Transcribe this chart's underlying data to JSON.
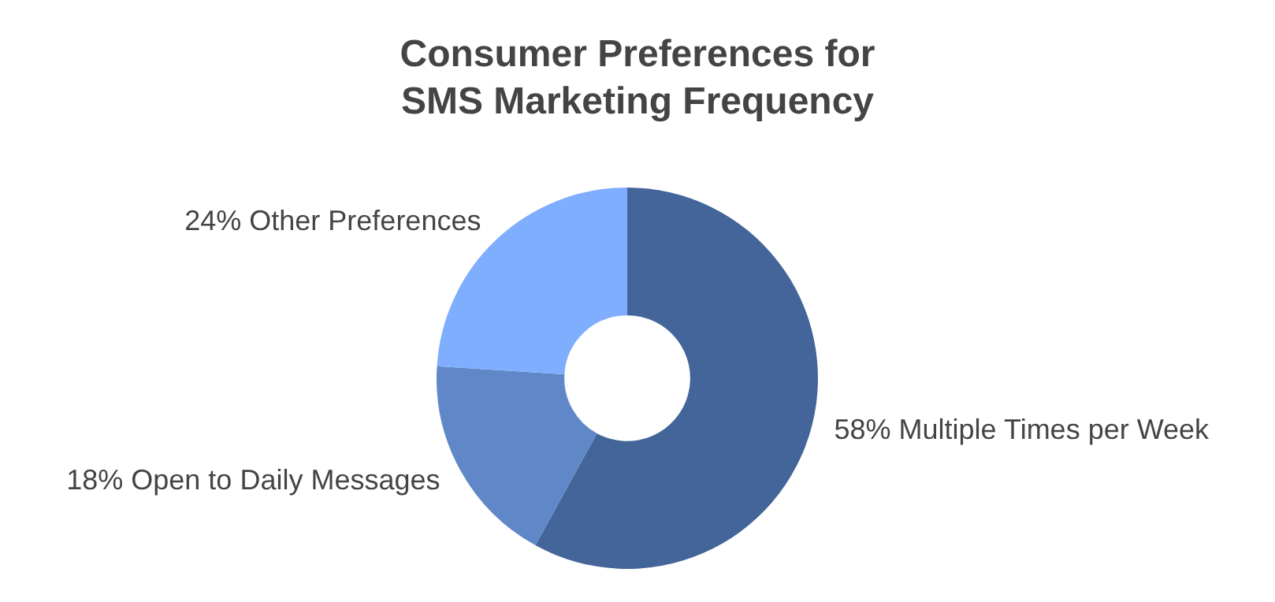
{
  "chart_data": {
    "type": "donut",
    "title": "Consumer Preferences for SMS Marketing Frequency",
    "categories": [
      "Multiple Times per Week",
      "Open to Daily Messages",
      "Other Preferences"
    ],
    "values": [
      58,
      18,
      24
    ],
    "value_labels": [
      "58%",
      "18%",
      "24%"
    ],
    "colors": [
      "#44659a",
      "#6088c8",
      "#7faeff"
    ],
    "legend": false
  }
}
